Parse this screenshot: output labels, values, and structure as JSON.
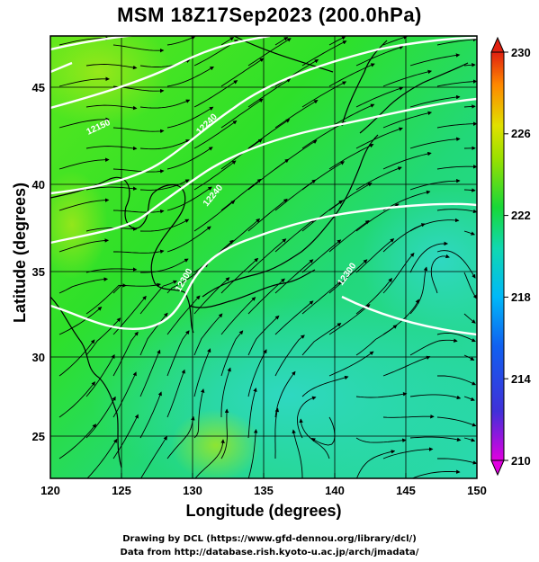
{
  "title": "MSM 18Z17Sep2023 (200.0hPa)",
  "xlabel": "Longitude (degrees)",
  "ylabel": "Latitude  (degrees)",
  "credits": [
    "Drawing by DCL (https://www.gfd-dennou.org/library/dcl/)",
    "Data from http://database.rish.kyoto-u.ac.jp/arch/jmadata/"
  ],
  "map": {
    "lon_range": [
      120,
      150
    ],
    "lat_range": [
      22.4,
      47.6
    ],
    "lon_ticks": [
      "120",
      "125",
      "130",
      "135",
      "140",
      "145",
      "150"
    ],
    "lat_ticks": [
      "25",
      "30",
      "35",
      "40",
      "45"
    ],
    "grid": true
  },
  "colorbar": {
    "range": [
      210,
      230
    ],
    "ticks": [
      "210",
      "214",
      "218",
      "222",
      "226",
      "230"
    ],
    "colors": [
      "#e000e0",
      "#3030d8",
      "#00b0ff",
      "#00d890",
      "#30e000",
      "#a0e000",
      "#e8e000",
      "#ff9000",
      "#e02000"
    ]
  },
  "contours": [
    "12150",
    "12240",
    "12300"
  ]
}
